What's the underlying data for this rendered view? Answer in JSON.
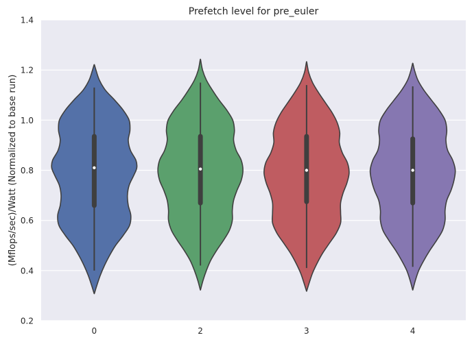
{
  "chart_data": {
    "type": "violin",
    "title": "Prefetch level for pre_euler",
    "xlabel": "",
    "ylabel": "(Mflops/sec)/Watt (Normalized to base run)",
    "categories": [
      "0",
      "2",
      "3",
      "4"
    ],
    "ylim": [
      0.2,
      1.4
    ],
    "yticks": [
      "0.2",
      "0.4",
      "0.6",
      "0.8",
      "1.0",
      "1.2",
      "1.4"
    ],
    "grid": true,
    "legend": "none",
    "series": [
      {
        "category": "0",
        "color": "#5471a8",
        "min": 0.31,
        "max": 1.22,
        "whisker_low": 0.4,
        "whisker_high": 1.13,
        "q1": 0.65,
        "median": 0.81,
        "q3": 0.945,
        "density": [
          [
            0.31,
            0.005
          ],
          [
            0.34,
            0.06
          ],
          [
            0.38,
            0.14
          ],
          [
            0.42,
            0.24
          ],
          [
            0.46,
            0.36
          ],
          [
            0.5,
            0.5
          ],
          [
            0.54,
            0.68
          ],
          [
            0.58,
            0.83
          ],
          [
            0.62,
            0.86
          ],
          [
            0.66,
            0.8
          ],
          [
            0.7,
            0.78
          ],
          [
            0.74,
            0.82
          ],
          [
            0.78,
            0.93
          ],
          [
            0.81,
            1.0
          ],
          [
            0.84,
            0.98
          ],
          [
            0.88,
            0.85
          ],
          [
            0.92,
            0.8
          ],
          [
            0.96,
            0.84
          ],
          [
            1.0,
            0.82
          ],
          [
            1.04,
            0.68
          ],
          [
            1.08,
            0.48
          ],
          [
            1.12,
            0.26
          ],
          [
            1.16,
            0.12
          ],
          [
            1.2,
            0.04
          ],
          [
            1.22,
            0.005
          ]
        ]
      },
      {
        "category": "2",
        "color": "#5ba06d",
        "min": 0.325,
        "max": 1.24,
        "whisker_low": 0.42,
        "whisker_high": 1.15,
        "q1": 0.66,
        "median": 0.805,
        "q3": 0.945,
        "density": [
          [
            0.325,
            0.005
          ],
          [
            0.36,
            0.06
          ],
          [
            0.4,
            0.14
          ],
          [
            0.44,
            0.24
          ],
          [
            0.48,
            0.38
          ],
          [
            0.52,
            0.54
          ],
          [
            0.56,
            0.68
          ],
          [
            0.6,
            0.75
          ],
          [
            0.64,
            0.75
          ],
          [
            0.68,
            0.78
          ],
          [
            0.72,
            0.86
          ],
          [
            0.76,
            0.96
          ],
          [
            0.8,
            1.0
          ],
          [
            0.84,
            0.96
          ],
          [
            0.88,
            0.84
          ],
          [
            0.92,
            0.78
          ],
          [
            0.96,
            0.8
          ],
          [
            1.0,
            0.76
          ],
          [
            1.04,
            0.62
          ],
          [
            1.08,
            0.44
          ],
          [
            1.12,
            0.28
          ],
          [
            1.16,
            0.14
          ],
          [
            1.2,
            0.05
          ],
          [
            1.24,
            0.005
          ]
        ]
      },
      {
        "category": "3",
        "color": "#bf5c61",
        "min": 0.32,
        "max": 1.23,
        "whisker_low": 0.41,
        "whisker_high": 1.14,
        "q1": 0.665,
        "median": 0.8,
        "q3": 0.945,
        "density": [
          [
            0.32,
            0.005
          ],
          [
            0.35,
            0.06
          ],
          [
            0.39,
            0.14
          ],
          [
            0.43,
            0.25
          ],
          [
            0.47,
            0.38
          ],
          [
            0.51,
            0.54
          ],
          [
            0.55,
            0.7
          ],
          [
            0.59,
            0.8
          ],
          [
            0.63,
            0.8
          ],
          [
            0.67,
            0.8
          ],
          [
            0.71,
            0.86
          ],
          [
            0.75,
            0.95
          ],
          [
            0.79,
            1.0
          ],
          [
            0.83,
            0.96
          ],
          [
            0.87,
            0.84
          ],
          [
            0.91,
            0.77
          ],
          [
            0.95,
            0.78
          ],
          [
            0.99,
            0.72
          ],
          [
            1.03,
            0.6
          ],
          [
            1.07,
            0.44
          ],
          [
            1.11,
            0.28
          ],
          [
            1.15,
            0.14
          ],
          [
            1.19,
            0.05
          ],
          [
            1.23,
            0.005
          ]
        ]
      },
      {
        "category": "4",
        "color": "#8677b1",
        "min": 0.325,
        "max": 1.225,
        "whisker_low": 0.415,
        "whisker_high": 1.135,
        "q1": 0.66,
        "median": 0.8,
        "q3": 0.935,
        "density": [
          [
            0.325,
            0.005
          ],
          [
            0.36,
            0.06
          ],
          [
            0.4,
            0.14
          ],
          [
            0.44,
            0.26
          ],
          [
            0.48,
            0.4
          ],
          [
            0.52,
            0.56
          ],
          [
            0.56,
            0.7
          ],
          [
            0.6,
            0.76
          ],
          [
            0.64,
            0.76
          ],
          [
            0.68,
            0.8
          ],
          [
            0.72,
            0.9
          ],
          [
            0.76,
            0.97
          ],
          [
            0.8,
            1.0
          ],
          [
            0.84,
            0.94
          ],
          [
            0.88,
            0.82
          ],
          [
            0.92,
            0.78
          ],
          [
            0.96,
            0.8
          ],
          [
            1.0,
            0.76
          ],
          [
            1.04,
            0.62
          ],
          [
            1.08,
            0.44
          ],
          [
            1.12,
            0.26
          ],
          [
            1.16,
            0.12
          ],
          [
            1.2,
            0.04
          ],
          [
            1.225,
            0.005
          ]
        ]
      }
    ]
  }
}
